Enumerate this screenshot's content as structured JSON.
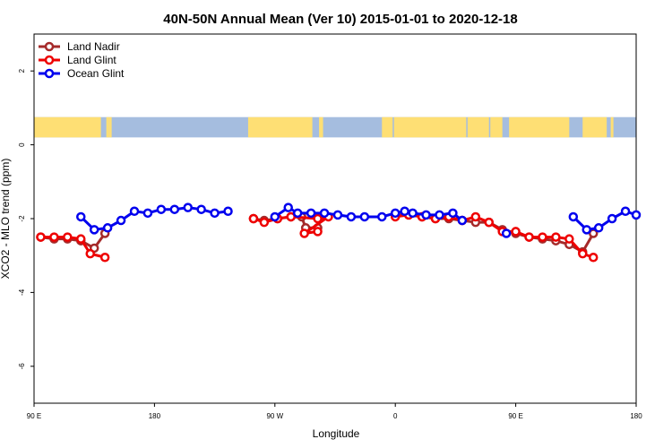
{
  "chart_data": {
    "type": "line",
    "title": "40N-50N Annual Mean (Ver 10)   2015-01-01 to 2020-12-18",
    "xlabel": "Longitude",
    "ylabel": "XCO2 - MLO trend (ppm)",
    "xlim": [
      90,
      540
    ],
    "ylim": [
      -7,
      3
    ],
    "x_ticks": [
      {
        "value": 90,
        "label": "90 E"
      },
      {
        "value": 180,
        "label": "180"
      },
      {
        "value": 270,
        "label": "90 W"
      },
      {
        "value": 360,
        "label": "0"
      },
      {
        "value": 450,
        "label": "90 E"
      },
      {
        "value": 540,
        "label": "180"
      }
    ],
    "y_ticks": [
      {
        "value": 2,
        "label": "2"
      },
      {
        "value": 0,
        "label": "0"
      },
      {
        "value": -2,
        "label": "-2"
      },
      {
        "value": -4,
        "label": "-4"
      },
      {
        "value": -6,
        "label": "-6"
      }
    ],
    "map_strip": {
      "ymin": 0.2,
      "ymax": 0.75,
      "ocean_color": "#a5bddf",
      "land_color": "#fedf74",
      "land_segments": [
        [
          90,
          140
        ],
        [
          146,
          148
        ],
        [
          144,
          146
        ],
        [
          250,
          298
        ],
        [
          303,
          306
        ],
        [
          350,
          358
        ],
        [
          359,
          413
        ],
        [
          414,
          430
        ],
        [
          431,
          440
        ],
        [
          445,
          490
        ],
        [
          500,
          518
        ],
        [
          521,
          523
        ]
      ]
    },
    "legend": {
      "position": "top-left",
      "entries": [
        {
          "name": "Land Nadir",
          "color": "#a52a2a"
        },
        {
          "name": "Land Glint",
          "color": "#ee0000"
        },
        {
          "name": "Ocean Glint",
          "color": "#0000ee"
        }
      ]
    },
    "series": [
      {
        "name": "Land Nadir",
        "color": "#a52a2a",
        "segments": [
          [
            [
              95,
              -2.5
            ],
            [
              105,
              -2.55
            ],
            [
              115,
              -2.55
            ],
            [
              125,
              -2.6
            ],
            [
              135,
              -2.8
            ],
            [
              143,
              -2.4
            ]
          ],
          [
            [
              254,
              -2.0
            ],
            [
              262,
              -2.05
            ],
            [
              272,
              -2.0
            ],
            [
              282,
              -1.95
            ],
            [
              290,
              -1.95
            ],
            [
              293,
              -2.25
            ],
            [
              302,
              -2.25
            ]
          ],
          [
            [
              360,
              -1.9
            ],
            [
              370,
              -1.9
            ],
            [
              380,
              -1.95
            ],
            [
              390,
              -2.0
            ],
            [
              400,
              -2.0
            ],
            [
              410,
              -2.05
            ],
            [
              420,
              -2.1
            ],
            [
              430,
              -2.1
            ],
            [
              440,
              -2.3
            ],
            [
              450,
              -2.4
            ],
            [
              460,
              -2.5
            ],
            [
              470,
              -2.55
            ],
            [
              480,
              -2.6
            ],
            [
              490,
              -2.7
            ],
            [
              500,
              -2.9
            ],
            [
              508,
              -2.4
            ]
          ]
        ]
      },
      {
        "name": "Land Glint",
        "color": "#ee0000",
        "segments": [
          [
            [
              95,
              -2.5
            ],
            [
              105,
              -2.5
            ],
            [
              115,
              -2.5
            ],
            [
              125,
              -2.55
            ],
            [
              132,
              -2.95
            ],
            [
              143,
              -3.05
            ]
          ],
          [
            [
              254,
              -2.0
            ],
            [
              262,
              -2.1
            ],
            [
              272,
              -2.0
            ],
            [
              282,
              -1.95
            ],
            [
              302,
              -2.0
            ],
            [
              310,
              -1.95
            ],
            [
              292,
              -2.4
            ],
            [
              302,
              -2.35
            ]
          ],
          [
            [
              360,
              -1.95
            ],
            [
              370,
              -1.9
            ],
            [
              380,
              -1.95
            ],
            [
              390,
              -2.0
            ],
            [
              400,
              -1.95
            ],
            [
              410,
              -2.05
            ],
            [
              420,
              -1.95
            ],
            [
              430,
              -2.1
            ],
            [
              440,
              -2.35
            ],
            [
              450,
              -2.35
            ],
            [
              460,
              -2.5
            ],
            [
              470,
              -2.5
            ],
            [
              480,
              -2.5
            ],
            [
              490,
              -2.55
            ],
            [
              500,
              -2.95
            ],
            [
              508,
              -3.05
            ]
          ]
        ]
      },
      {
        "name": "Ocean Glint",
        "color": "#0000ee",
        "segments": [
          [
            [
              125,
              -1.95
            ],
            [
              135,
              -2.3
            ],
            [
              145,
              -2.25
            ],
            [
              155,
              -2.05
            ],
            [
              165,
              -1.8
            ],
            [
              175,
              -1.85
            ],
            [
              185,
              -1.75
            ],
            [
              195,
              -1.75
            ],
            [
              205,
              -1.7
            ],
            [
              215,
              -1.75
            ],
            [
              225,
              -1.85
            ],
            [
              235,
              -1.8
            ]
          ],
          [
            [
              270,
              -1.95
            ],
            [
              280,
              -1.7
            ],
            [
              287,
              -1.85
            ],
            [
              297,
              -1.85
            ],
            [
              307,
              -1.85
            ],
            [
              317,
              -1.9
            ],
            [
              327,
              -1.95
            ],
            [
              337,
              -1.95
            ],
            [
              350,
              -1.95
            ],
            [
              360,
              -1.85
            ],
            [
              367,
              -1.8
            ],
            [
              373,
              -1.85
            ],
            [
              383,
              -1.9
            ],
            [
              393,
              -1.9
            ],
            [
              403,
              -1.85
            ],
            [
              410,
              -2.05
            ]
          ],
          [
            [
              443,
              -2.4
            ]
          ],
          [
            [
              493,
              -1.95
            ],
            [
              503,
              -2.3
            ],
            [
              512,
              -2.25
            ],
            [
              522,
              -2.0
            ],
            [
              532,
              -1.8
            ],
            [
              540,
              -1.9
            ]
          ]
        ]
      }
    ]
  }
}
